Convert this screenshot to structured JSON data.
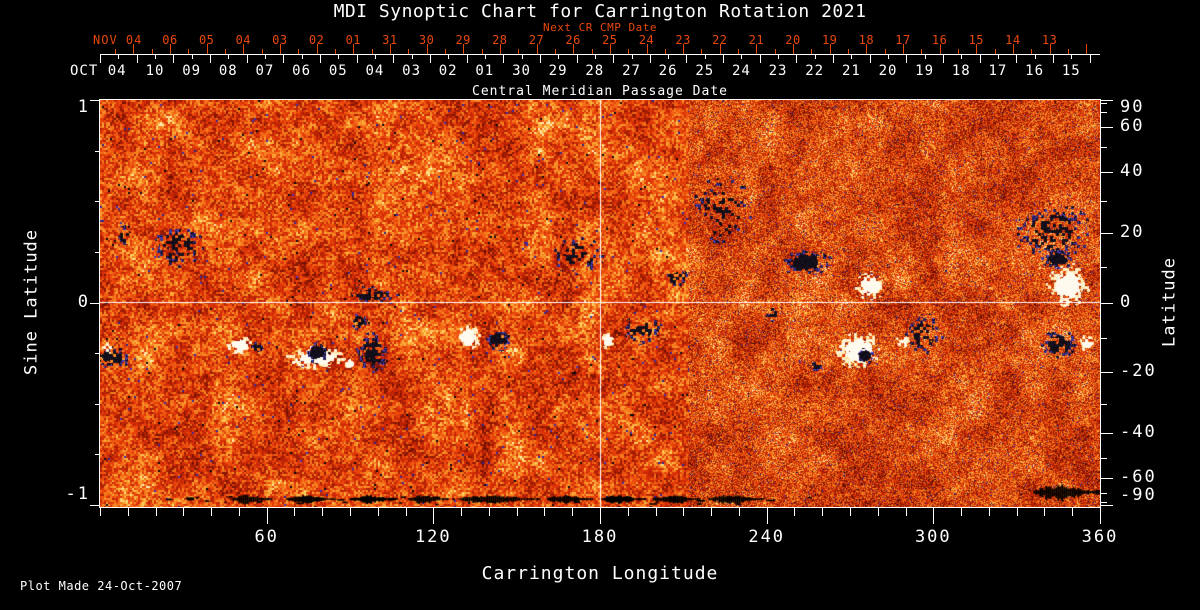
{
  "title": "MDI Synoptic Chart for Carrington Rotation 2021",
  "footer": {
    "plot_made": "Plot Made 24-Oct-2007"
  },
  "colors": {
    "background": "#000000",
    "text": "#ffffff",
    "accent_red": "#e8480c",
    "map_negative_polarity": "#1c1c86",
    "map_positive_polarity": "#fffef0"
  },
  "chart_data": {
    "type": "heatmap",
    "title": "MDI Synoptic Chart for Carrington Rotation 2021",
    "xlabel": "Carrington Longitude",
    "x_axis": {
      "label": "Carrington Longitude",
      "range": [
        0,
        360
      ],
      "major_ticks": [
        60,
        120,
        180,
        240,
        300,
        360
      ],
      "minor_step": 10
    },
    "y_axis_left": {
      "label": "Sine Latitude",
      "range": [
        -1,
        1
      ],
      "major_ticks": [
        1,
        0,
        -1
      ],
      "minor_step": 0.25
    },
    "y_axis_right": {
      "label": "Latitude",
      "labeled_ticks": [
        90,
        60,
        40,
        20,
        0,
        -20,
        -40,
        -60,
        -90
      ],
      "minor_step_deg": 10
    },
    "top_axis_next_cr": {
      "title": "Next CR CMP Date",
      "month_label": "NOV 04",
      "day_labels": [
        "06",
        "05",
        "04",
        "03",
        "02",
        "01",
        "31",
        "30",
        "29",
        "28",
        "27",
        "26",
        "25",
        "24",
        "23",
        "22",
        "21",
        "20",
        "19",
        "18",
        "17",
        "16",
        "15",
        "14",
        "13"
      ]
    },
    "top_axis_cmp": {
      "title": "Central Meridian Passage Date",
      "month_label": "OCT 04",
      "day_labels": [
        "10",
        "09",
        "08",
        "07",
        "06",
        "05",
        "04",
        "03",
        "02",
        "01",
        "30",
        "29",
        "28",
        "27",
        "26",
        "25",
        "24",
        "23",
        "22",
        "21",
        "20",
        "19",
        "18",
        "17",
        "16",
        "15"
      ]
    },
    "grid_lines": {
      "longitude": 180,
      "sine_latitude": 0
    },
    "texture": {
      "seam_lon": 212
    },
    "active_regions": [
      {
        "lon": 28,
        "slat": 0.28,
        "rlon": 10,
        "rslat": 0.12,
        "polarity": "neg",
        "strength": 0.5
      },
      {
        "lon": 9,
        "slat": 0.33,
        "rlon": 4,
        "rslat": 0.06,
        "polarity": "neg",
        "strength": 0.35
      },
      {
        "lon": 4,
        "slat": -0.27,
        "rlon": 7.5,
        "rslat": 0.06,
        "polarity": "neg",
        "strength": 0.75
      },
      {
        "lon": 2.5,
        "slat": -0.22,
        "rlon": 2.5,
        "rslat": 0.035,
        "polarity": "pos",
        "strength": 0.6
      },
      {
        "lon": 50,
        "slat": -0.21,
        "rlon": 5.5,
        "rslat": 0.055,
        "polarity": "pos",
        "strength": 0.8
      },
      {
        "lon": 56.5,
        "slat": -0.22,
        "rlon": 2.5,
        "rslat": 0.04,
        "polarity": "neg",
        "strength": 0.6
      },
      {
        "lon": 78,
        "slat": -0.27,
        "rlon": 11.5,
        "rslat": 0.06,
        "polarity": "pos",
        "strength": 0.85
      },
      {
        "lon": 90,
        "slat": -0.3,
        "rlon": 3,
        "rslat": 0.035,
        "polarity": "pos",
        "strength": 0.6
      },
      {
        "lon": 78,
        "slat": -0.245,
        "rlon": 4.5,
        "rslat": 0.06,
        "polarity": "neg",
        "strength": 0.95
      },
      {
        "lon": 93,
        "slat": -0.09,
        "rlon": 3.5,
        "rslat": 0.05,
        "polarity": "neg",
        "strength": 0.75
      },
      {
        "lon": 98,
        "slat": -0.245,
        "rlon": 6.5,
        "rslat": 0.11,
        "polarity": "neg",
        "strength": 0.8
      },
      {
        "lon": 97,
        "slat": 0.04,
        "rlon": 9,
        "rslat": 0.05,
        "polarity": "neg",
        "strength": 0.55
      },
      {
        "lon": 132.5,
        "slat": -0.17,
        "rlon": 5,
        "rslat": 0.075,
        "polarity": "pos",
        "strength": 0.9
      },
      {
        "lon": 143,
        "slat": -0.185,
        "rlon": 5.2,
        "rslat": 0.06,
        "polarity": "neg",
        "strength": 0.8
      },
      {
        "lon": 171.7,
        "slat": 0.235,
        "rlon": 10,
        "rslat": 0.1,
        "polarity": "neg",
        "strength": 0.35
      },
      {
        "lon": 182.5,
        "slat": -0.185,
        "rlon": 2.7,
        "rslat": 0.05,
        "polarity": "pos",
        "strength": 0.85
      },
      {
        "lon": 195,
        "slat": -0.135,
        "rlon": 8,
        "rslat": 0.075,
        "polarity": "neg",
        "strength": 0.5
      },
      {
        "lon": 224,
        "slat": 0.45,
        "rlon": 12,
        "rslat": 0.22,
        "polarity": "neg",
        "strength": 0.18
      },
      {
        "lon": 254,
        "slat": 0.2,
        "rlon": 10,
        "rslat": 0.07,
        "polarity": "neg",
        "strength": 0.85
      },
      {
        "lon": 277,
        "slat": 0.085,
        "rlon": 6.7,
        "rslat": 0.075,
        "polarity": "pos",
        "strength": 0.8
      },
      {
        "lon": 273,
        "slat": -0.235,
        "rlon": 9.4,
        "rslat": 0.1,
        "polarity": "pos",
        "strength": 0.95
      },
      {
        "lon": 275.4,
        "slat": -0.26,
        "rlon": 3.6,
        "rslat": 0.045,
        "polarity": "neg",
        "strength": 0.85
      },
      {
        "lon": 258,
        "slat": -0.31,
        "rlon": 2.5,
        "rslat": 0.03,
        "polarity": "neg",
        "strength": 0.5
      },
      {
        "lon": 296.6,
        "slat": -0.157,
        "rlon": 7.5,
        "rslat": 0.11,
        "polarity": "neg",
        "strength": 0.55
      },
      {
        "lon": 288.4,
        "slat": -0.185,
        "rlon": 3,
        "rslat": 0.04,
        "polarity": "pos",
        "strength": 0.65
      },
      {
        "lon": 342.7,
        "slat": 0.35,
        "rlon": 15,
        "rslat": 0.16,
        "polarity": "neg",
        "strength": 0.4
      },
      {
        "lon": 344.5,
        "slat": 0.215,
        "rlon": 6.3,
        "rslat": 0.055,
        "polarity": "neg",
        "strength": 0.9
      },
      {
        "lon": 348.5,
        "slat": 0.085,
        "rlon": 8.5,
        "rslat": 0.115,
        "polarity": "pos",
        "strength": 0.95
      },
      {
        "lon": 345,
        "slat": -0.205,
        "rlon": 7.2,
        "rslat": 0.08,
        "polarity": "neg",
        "strength": 0.75
      },
      {
        "lon": 355.3,
        "slat": -0.197,
        "rlon": 3.4,
        "rslat": 0.047,
        "polarity": "pos",
        "strength": 0.7
      },
      {
        "lon": 207,
        "slat": 0.13,
        "rlon": 5,
        "rslat": 0.06,
        "polarity": "neg",
        "strength": 0.3
      },
      {
        "lon": 243,
        "slat": -0.05,
        "rlon": 4,
        "rslat": 0.05,
        "polarity": "neg",
        "strength": 0.3
      }
    ],
    "bottom_streaks": [
      {
        "lon0": 47,
        "lon1": 62
      },
      {
        "lon0": 67,
        "lon1": 85
      },
      {
        "lon0": 90,
        "lon1": 107
      },
      {
        "lon0": 111,
        "lon1": 125
      },
      {
        "lon0": 129,
        "lon1": 158
      },
      {
        "lon0": 161,
        "lon1": 177
      },
      {
        "lon0": 180,
        "lon1": 196
      },
      {
        "lon0": 199,
        "lon1": 216
      },
      {
        "lon0": 219,
        "lon1": 239
      },
      {
        "lon0": 336,
        "lon1": 360,
        "big": true
      }
    ]
  }
}
